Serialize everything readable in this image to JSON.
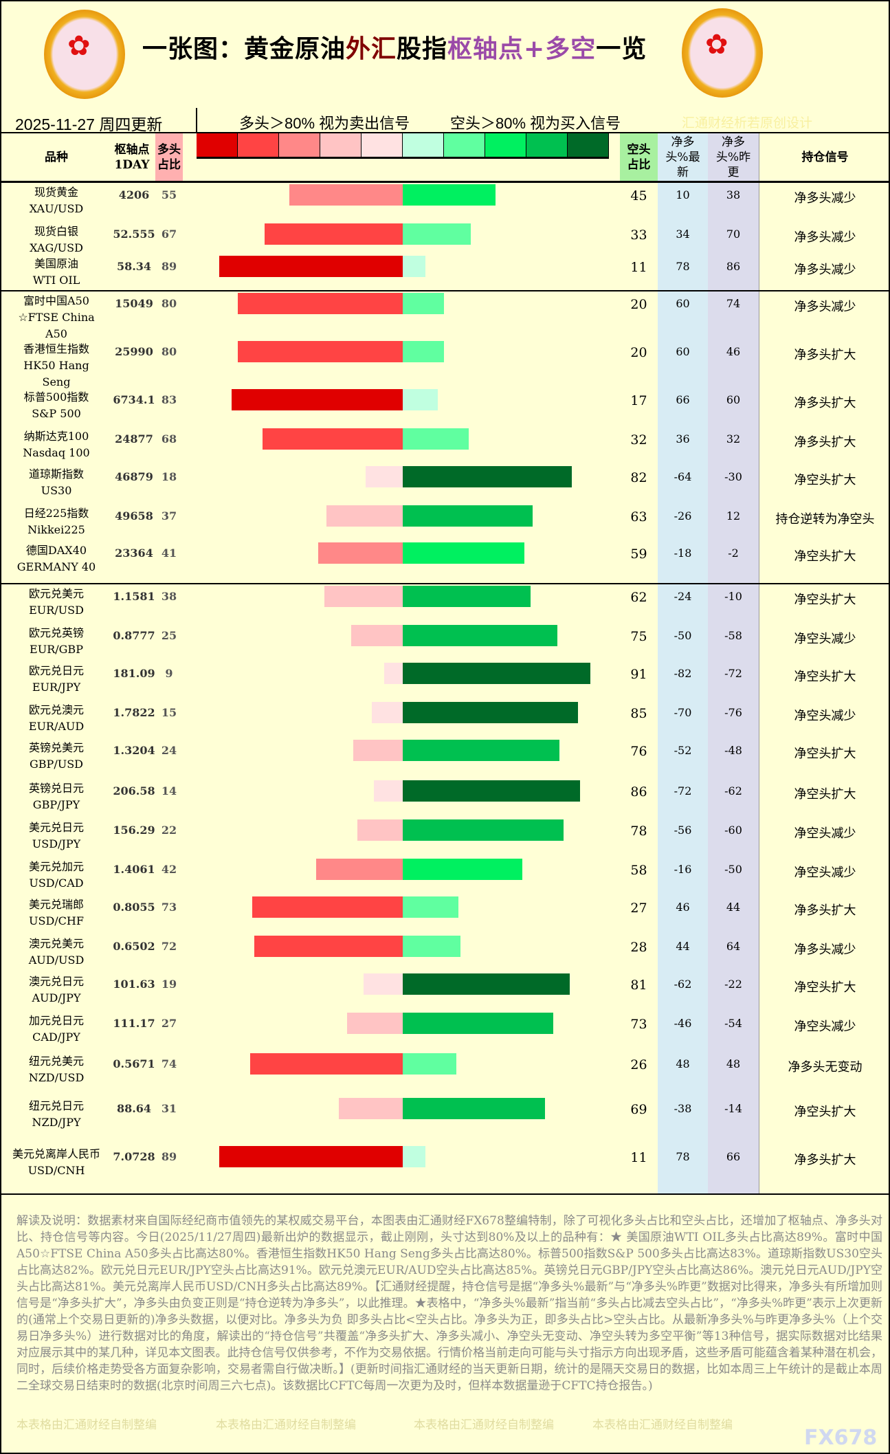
{
  "header": {
    "title_black1": "一张图：黄金原油",
    "title_red": "外汇",
    "title_black2": "股指",
    "title_purple": "枢轴点+多空",
    "title_black3": "一览",
    "logo_text": "fx678 yly"
  },
  "date": "2025-11-27 周四更新",
  "sell_signal": "多头＞80% 视为卖出信号",
  "buy_signal": "空头＞80% 视为买入信号",
  "credit": "汇通财经析若原创设计",
  "columns": {
    "name": "品种",
    "pivot": "枢轴点",
    "pivot_sub": "1DAY",
    "long": "多头占比",
    "short": "空头占比",
    "net_latest": "净多头%最新",
    "net_prev": "净多头%昨更",
    "signal": "持仓信号"
  },
  "colors": {
    "long": [
      "#e00000",
      "#ff4444",
      "#ff8888",
      "#ffc4c4",
      "#ffe2e2"
    ],
    "short": [
      "#c0ffe0",
      "#60ffa0",
      "#00f060",
      "#00c050",
      "#006a28"
    ],
    "background": "#ffffd6"
  },
  "rows": [
    {
      "cn": "现货黄金",
      "en": "XAU/USD",
      "pivot": "4206",
      "long": 55,
      "short": 45,
      "net": "10",
      "prev": "38",
      "signal": "净多头减少"
    },
    {
      "cn": "现货白银",
      "en": "XAG/USD",
      "pivot": "52.555",
      "long": 67,
      "short": 33,
      "net": "34",
      "prev": "70",
      "signal": "净多头减少"
    },
    {
      "cn": "美国原油",
      "en": "WTI OIL",
      "pivot": "58.34",
      "long": 89,
      "short": 11,
      "net": "78",
      "prev": "86",
      "signal": "净多头减少"
    },
    {
      "cn": "富时中国A50",
      "en": "☆FTSE China A50",
      "pivot": "15049",
      "long": 80,
      "short": 20,
      "net": "60",
      "prev": "74",
      "signal": "净多头减少"
    },
    {
      "cn": "香港恒生指数",
      "en": "HK50 Hang Seng",
      "pivot": "25990",
      "long": 80,
      "short": 20,
      "net": "60",
      "prev": "46",
      "signal": "净多头扩大"
    },
    {
      "cn": "标普500指数",
      "en": "S&P 500",
      "pivot": "6734.1",
      "long": 83,
      "short": 17,
      "net": "66",
      "prev": "60",
      "signal": "净多头扩大"
    },
    {
      "cn": "纳斯达克100",
      "en": "Nasdaq 100",
      "pivot": "24877",
      "long": 68,
      "short": 32,
      "net": "36",
      "prev": "32",
      "signal": "净多头扩大"
    },
    {
      "cn": "道琼斯指数",
      "en": "US30",
      "pivot": "46879",
      "long": 18,
      "short": 82,
      "net": "-64",
      "prev": "-30",
      "signal": "净空头扩大"
    },
    {
      "cn": "日经225指数",
      "en": "Nikkei225",
      "pivot": "49658",
      "long": 37,
      "short": 63,
      "net": "-26",
      "prev": "12",
      "signal": "持仓逆转为净空头"
    },
    {
      "cn": "德国DAX40",
      "en": "GERMANY 40",
      "pivot": "23364",
      "long": 41,
      "short": 59,
      "net": "-18",
      "prev": "-2",
      "signal": "净空头扩大"
    },
    {
      "cn": "欧元兑美元",
      "en": "EUR/USD",
      "pivot": "1.1581",
      "long": 38,
      "short": 62,
      "net": "-24",
      "prev": "-10",
      "signal": "净空头扩大"
    },
    {
      "cn": "欧元兑英镑",
      "en": "EUR/GBP",
      "pivot": "0.8777",
      "long": 25,
      "short": 75,
      "net": "-50",
      "prev": "-58",
      "signal": "净空头减少"
    },
    {
      "cn": "欧元兑日元",
      "en": "EUR/JPY",
      "pivot": "181.09",
      "long": 9,
      "short": 91,
      "net": "-82",
      "prev": "-72",
      "signal": "净空头扩大"
    },
    {
      "cn": "欧元兑澳元",
      "en": "EUR/AUD",
      "pivot": "1.7822",
      "long": 15,
      "short": 85,
      "net": "-70",
      "prev": "-76",
      "signal": "净空头减少"
    },
    {
      "cn": "英镑兑美元",
      "en": "GBP/USD",
      "pivot": "1.3204",
      "long": 24,
      "short": 76,
      "net": "-52",
      "prev": "-48",
      "signal": "净空头扩大"
    },
    {
      "cn": "英镑兑日元",
      "en": "GBP/JPY",
      "pivot": "206.58",
      "long": 14,
      "short": 86,
      "net": "-72",
      "prev": "-62",
      "signal": "净空头扩大"
    },
    {
      "cn": "美元兑日元",
      "en": "USD/JPY",
      "pivot": "156.29",
      "long": 22,
      "short": 78,
      "net": "-56",
      "prev": "-60",
      "signal": "净空头减少"
    },
    {
      "cn": "美元兑加元",
      "en": "USD/CAD",
      "pivot": "1.4061",
      "long": 42,
      "short": 58,
      "net": "-16",
      "prev": "-50",
      "signal": "净空头减少"
    },
    {
      "cn": "美元兑瑞郎",
      "en": "USD/CHF",
      "pivot": "0.8055",
      "long": 73,
      "short": 27,
      "net": "46",
      "prev": "44",
      "signal": "净多头扩大"
    },
    {
      "cn": "澳元兑美元",
      "en": "AUD/USD",
      "pivot": "0.6502",
      "long": 72,
      "short": 28,
      "net": "44",
      "prev": "64",
      "signal": "净多头减少"
    },
    {
      "cn": "澳元兑日元",
      "en": "AUD/JPY",
      "pivot": "101.63",
      "long": 19,
      "short": 81,
      "net": "-62",
      "prev": "-22",
      "signal": "净空头扩大"
    },
    {
      "cn": "加元兑日元",
      "en": "CAD/JPY",
      "pivot": "111.17",
      "long": 27,
      "short": 73,
      "net": "-46",
      "prev": "-54",
      "signal": "净空头减少"
    },
    {
      "cn": "纽元兑美元",
      "en": "NZD/USD",
      "pivot": "0.5671",
      "long": 74,
      "short": 26,
      "net": "48",
      "prev": "48",
      "signal": "净多头无变动"
    },
    {
      "cn": "纽元兑日元",
      "en": "NZD/JPY",
      "pivot": "88.64",
      "long": 31,
      "short": 69,
      "net": "-38",
      "prev": "-14",
      "signal": "净空头扩大"
    },
    {
      "cn": "美元兑离岸人民币",
      "en": "USD/CNH",
      "pivot": "7.0728",
      "long": 89,
      "short": 11,
      "net": "78",
      "prev": "66",
      "signal": "净多头扩大"
    }
  ],
  "notes": "解读及说明：数据素材来自国际经纪商市值领先的某权威交易平台，本图表由汇通财经FX678整编特制，除了可视化多头占比和空头占比，还增加了枢轴点、净多头对比、持仓信号等内容。今日(2025/11/27周四)最新出炉的数据显示，截止刚刚，头寸达到80%及以上的品种有：★ 美国原油WTI OIL多头占比高达89%。富时中国A50☆FTSE China A50多头占比高达80%。香港恒生指数HK50 Hang Seng多头占比高达80%。标普500指数S&P 500多头占比高达83%。道琼斯指数US30空头占比高达82%。欧元兑日元EUR/JPY空头占比高达91%。欧元兑澳元EUR/AUD空头占比高达85%。英镑兑日元GBP/JPY空头占比高达86%。澳元兑日元AUD/JPY空头占比高达81%。美元兑离岸人民币USD/CNH多头占比高达89%。【汇通财经提醒，持仓信号是据“净多头%最新”与“净多头%昨更”数据对比得来，净多头有所增加则信号是“净多头扩大”，净多头由负变正则是“持仓逆转为净多头”，以此推理。★表格中，“净多头%最新”指当前“多头占比减去空头占比”，“净多头%昨更”表示上次更新的(通常上个交易日更新的)净多头数据，以便对比。净多头为负 即多头占比<空头占比。净多头为正，即多头占比>空头占比。从最新净多头%与昨更净多头%（上个交易日净多头%）进行数据对比的角度，解读出的“持仓信号”共覆盖“净多头扩大、净多头减小、净空头无变动、净空头转为多空平衡”等13种信号，据实际数据对比结果对应展示其中的某几种，详见本文图表。此持仓信号仅供参考，不作为交易依据。行情价格当前走向可能与头寸指示方向出现矛盾，这些矛盾可能蕴含着某种潜在机会，同时，后续价格走势受各方面复杂影响，交易者需自行做决断。】(更新时间指汇通财经的当天更新日期，统计的是隔天交易日的数据，比如本周三上午统计的是截止本周二全球交易日结束时的数据(北京时间周三六七点)。该数据比CFTC每周一次更为及时，但样本数据量逊于CFTC持仓报告。)",
  "watermark": "本表格由汇通财经自制整编",
  "brand": "FX678"
}
